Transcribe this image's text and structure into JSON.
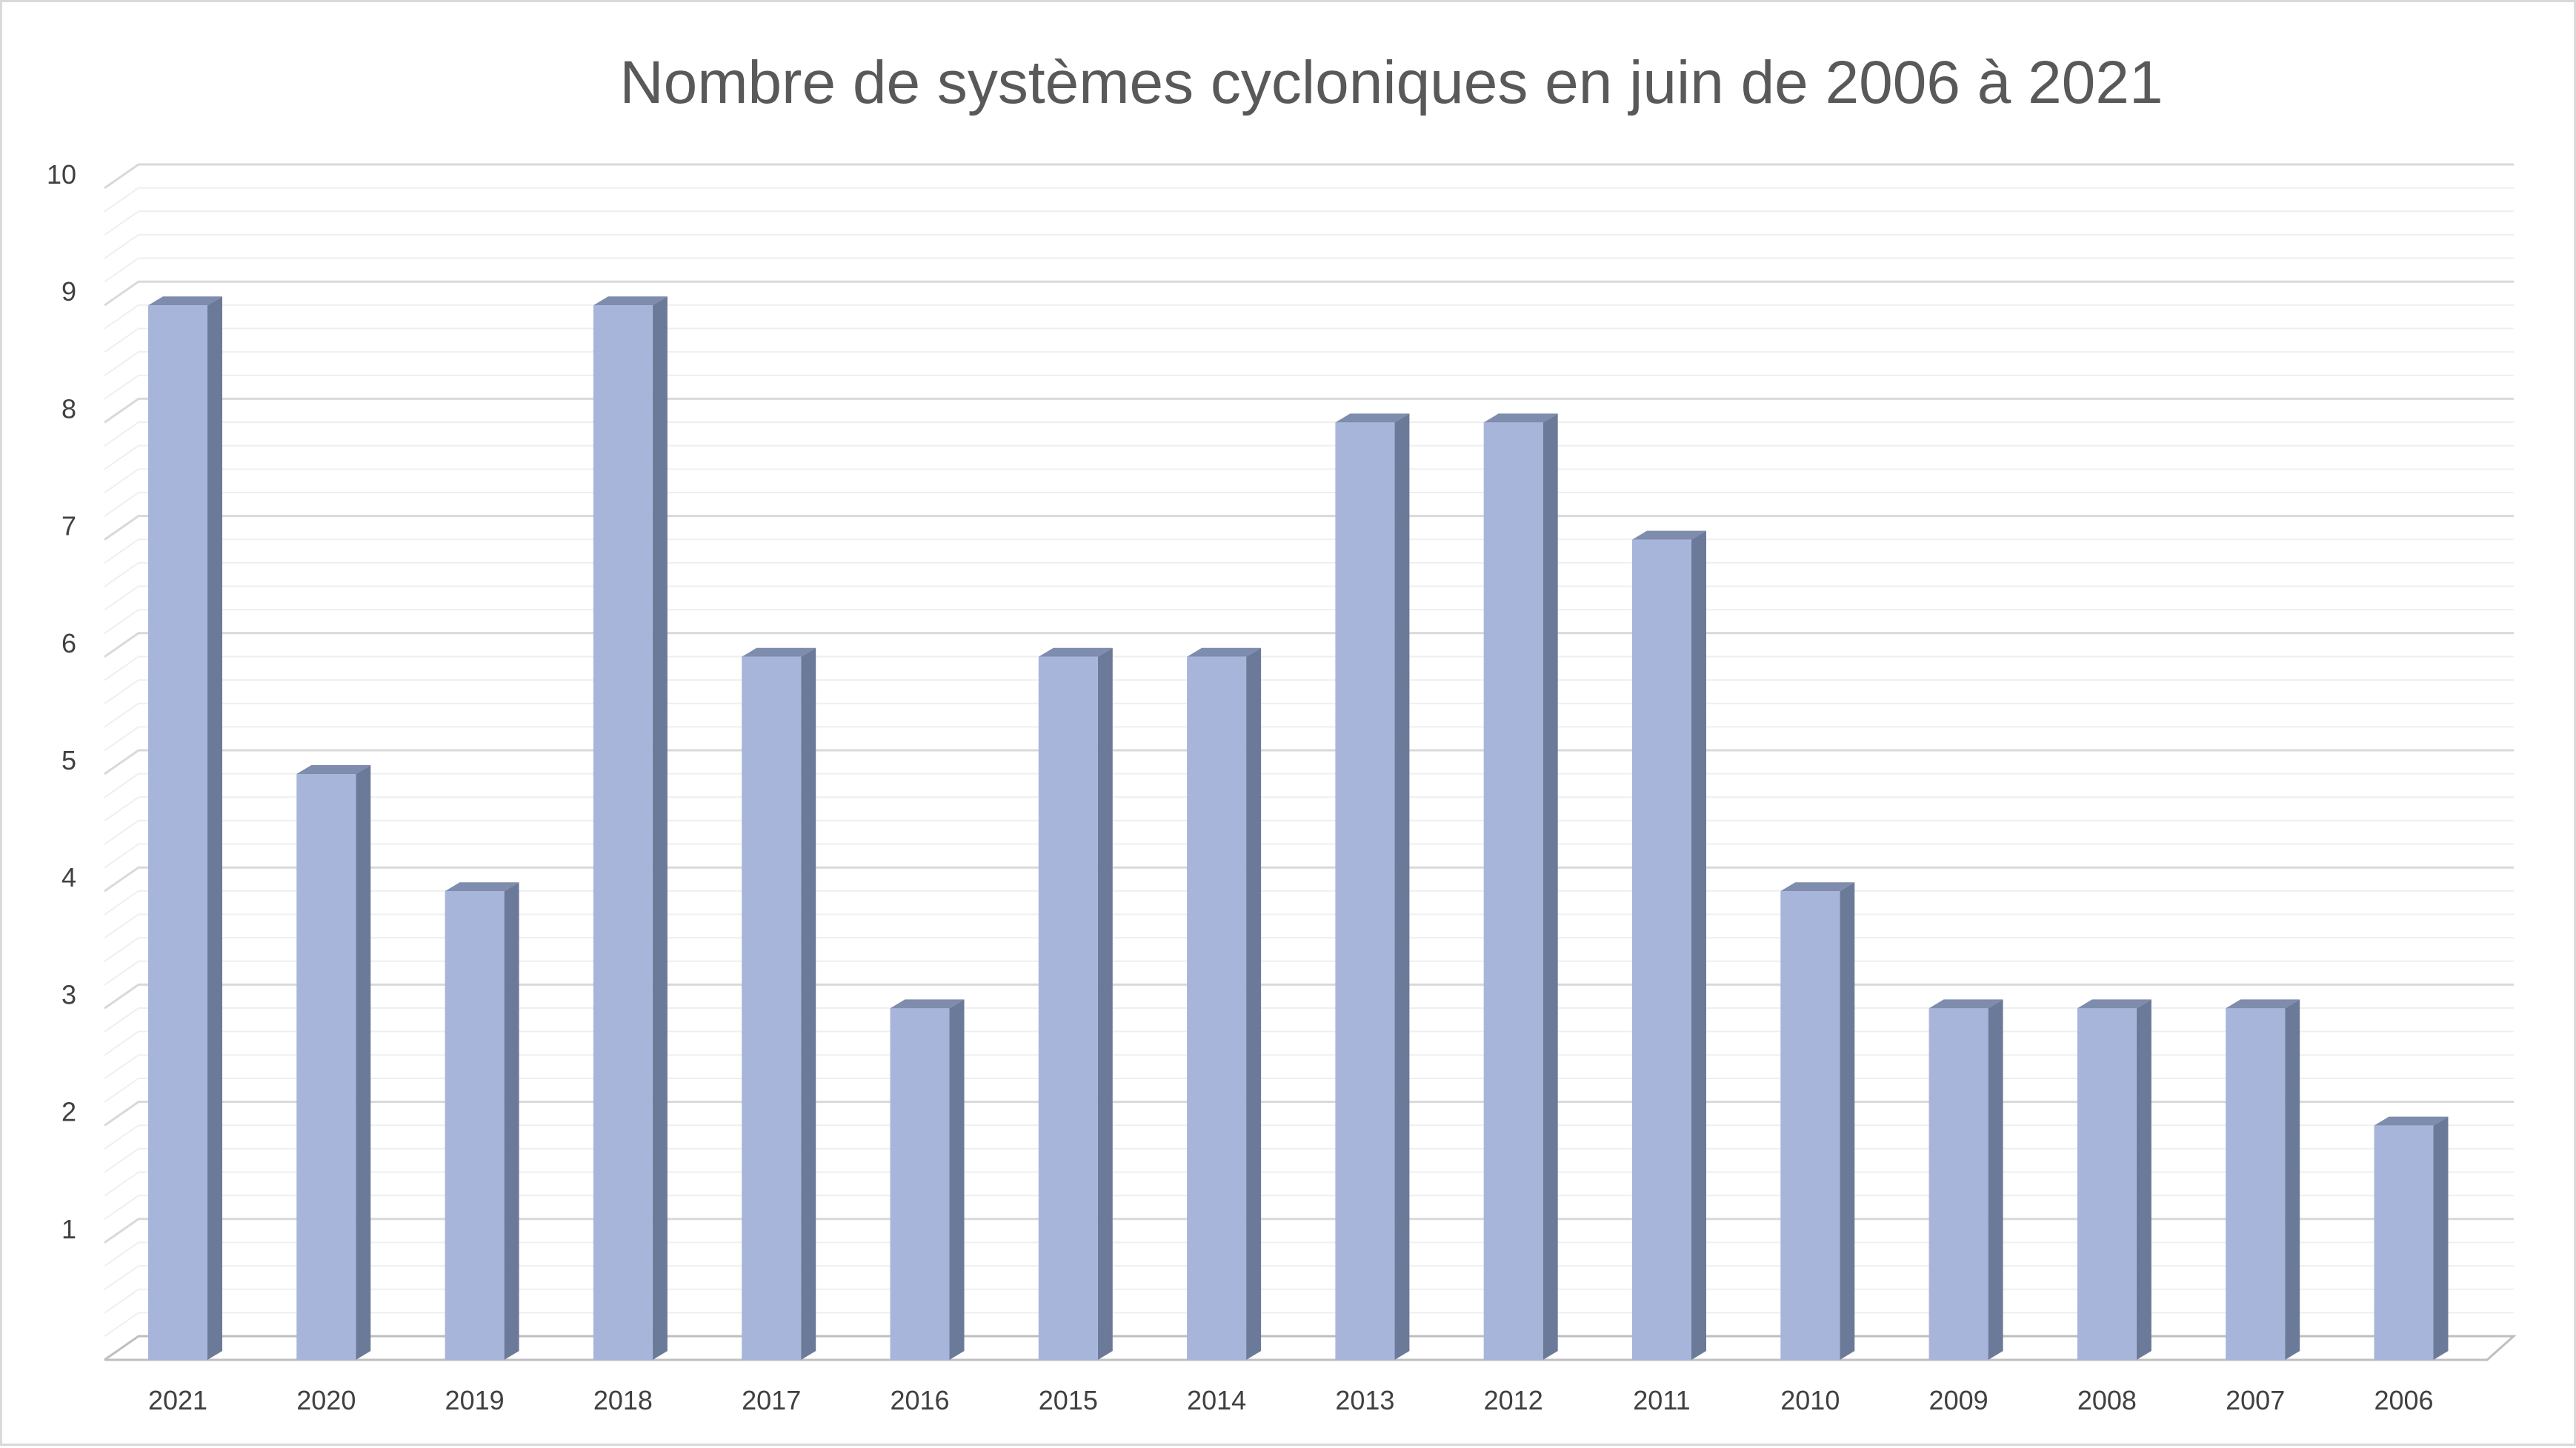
{
  "chart_data": {
    "type": "bar",
    "title": "Nombre de systèmes cycloniques en juin de 2006 à 2021",
    "xlabel": "",
    "ylabel": "",
    "categories": [
      "2021",
      "2020",
      "2019",
      "2018",
      "2017",
      "2016",
      "2015",
      "2014",
      "2013",
      "2012",
      "2011",
      "2010",
      "2009",
      "2008",
      "2007",
      "2006"
    ],
    "series": [
      {
        "values": [
          9,
          5,
          4,
          9,
          6,
          3,
          6,
          6,
          8,
          8,
          7,
          4,
          3,
          3,
          3,
          2
        ]
      }
    ],
    "ylim": [
      0,
      10
    ],
    "yticks": [
      1,
      2,
      3,
      4,
      5,
      6,
      7,
      8,
      9,
      10
    ],
    "minor_grid_step": 0.2,
    "grid": true,
    "legend": "none",
    "three_d": true,
    "colors": {
      "bar_front": "#a8b5db",
      "bar_side": "#6c7a99",
      "bar_top": "#7e8cad",
      "major_grid": "#d9d9d9",
      "minor_grid": "#efefef",
      "text": "#404040"
    }
  }
}
